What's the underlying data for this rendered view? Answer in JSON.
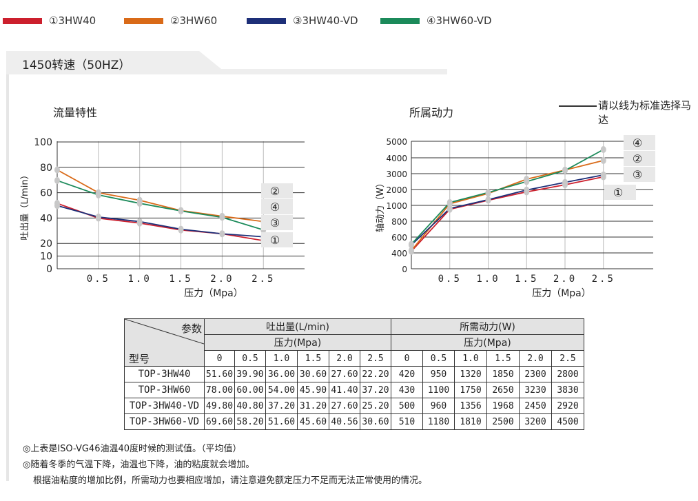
{
  "legend": [
    {
      "label": "①3HW40",
      "color": "#cc1f2d"
    },
    {
      "label": "②3HW60",
      "color": "#d96a18"
    },
    {
      "label": "③3HW40-VD",
      "color": "#1d2f78"
    },
    {
      "label": "④3HW60-VD",
      "color": "#1b8a5a"
    }
  ],
  "section_title": "1450转速（50HZ）",
  "note_text": "请以线为标准选择马达",
  "chart_data": [
    {
      "type": "line",
      "title": "流量特性",
      "xlabel": "压力（Mpa）",
      "ylabel": "吐出量（L/min）",
      "x": [
        0,
        0.5,
        1.0,
        1.5,
        2.0,
        2.5
      ],
      "xticks": [
        "0.5",
        "1.0",
        "1.5",
        "2.0",
        "2.5"
      ],
      "xlim": [
        0,
        3.0
      ],
      "ylim": [
        0,
        100
      ],
      "yticks": [
        "0",
        "10",
        "20",
        "40",
        "60",
        "80",
        "100"
      ],
      "series": [
        {
          "name": "①",
          "color": "#cc1f2d",
          "values": [
            51.6,
            39.9,
            36.0,
            30.6,
            27.6,
            22.2
          ]
        },
        {
          "name": "②",
          "color": "#d96a18",
          "values": [
            78.0,
            60.0,
            54.0,
            45.9,
            41.4,
            37.2
          ]
        },
        {
          "name": "③",
          "color": "#1d2f78",
          "values": [
            49.8,
            40.8,
            37.2,
            31.2,
            27.6,
            25.2
          ]
        },
        {
          "name": "④",
          "color": "#1b8a5a",
          "values": [
            69.6,
            58.2,
            51.6,
            45.6,
            40.56,
            30.6
          ]
        }
      ],
      "end_labels": [
        "②",
        "④",
        "③",
        "①"
      ],
      "grid": "vertical"
    },
    {
      "type": "line",
      "title": "所属动力",
      "xlabel": "压力（Mpa）",
      "ylabel": "轴动力（W）",
      "x": [
        0,
        0.5,
        1.0,
        1.5,
        2.0,
        2.5
      ],
      "xticks": [
        "0.5",
        "1.0",
        "1.5",
        "2.0",
        "2.5"
      ],
      "xlim": [
        0,
        3.0
      ],
      "ylim": [
        0,
        5000
      ],
      "yticks": [
        "0",
        "400",
        "600",
        "800",
        "1000",
        "2000",
        "3000",
        "4000",
        "5000"
      ],
      "series": [
        {
          "name": "①",
          "color": "#cc1f2d",
          "values": [
            420,
            950,
            1320,
            1850,
            2300,
            2800
          ]
        },
        {
          "name": "②",
          "color": "#d96a18",
          "values": [
            430,
            1100,
            1750,
            2650,
            3230,
            3830
          ]
        },
        {
          "name": "③",
          "color": "#1d2f78",
          "values": [
            500,
            960,
            1356,
            1968,
            2450,
            2920
          ]
        },
        {
          "name": "④",
          "color": "#1b8a5a",
          "values": [
            510,
            1180,
            1810,
            2500,
            3200,
            4500
          ]
        }
      ],
      "end_labels": [
        "④",
        "②",
        "③",
        "①"
      ],
      "grid": "vertical"
    }
  ],
  "table": {
    "corner_top": "参数",
    "corner_bottom": "型号",
    "flow_header": "吐出量(L/min)",
    "power_header": "所需动力(W)",
    "pressure_label": "压力(Mpa)",
    "pressure_cols": [
      "0",
      "0.5",
      "1.0",
      "1.5",
      "2.0",
      "2.5"
    ],
    "rows": [
      {
        "model": "TOP-3HW40",
        "flow": [
          "51.60",
          "39.90",
          "36.00",
          "30.60",
          "27.60",
          "22.20"
        ],
        "power": [
          "420",
          "950",
          "1320",
          "1850",
          "2300",
          "2800"
        ]
      },
      {
        "model": "TOP-3HW60",
        "flow": [
          "78.00",
          "60.00",
          "54.00",
          "45.90",
          "41.40",
          "37.20"
        ],
        "power": [
          "430",
          "1100",
          "1750",
          "2650",
          "3230",
          "3830"
        ]
      },
      {
        "model": "TOP-3HW40-VD",
        "flow": [
          "49.80",
          "40.80",
          "37.20",
          "31.20",
          "27.60",
          "25.20"
        ],
        "power": [
          "500",
          "960",
          "1356",
          "1968",
          "2450",
          "2920"
        ]
      },
      {
        "model": "TOP-3HW60-VD",
        "flow": [
          "69.60",
          "58.20",
          "51.60",
          "45.60",
          "40.56",
          "30.60"
        ],
        "power": [
          "510",
          "1180",
          "1810",
          "2500",
          "3200",
          "4500"
        ]
      }
    ]
  },
  "footnotes": [
    "◎上表是ISO-VG46油温40度时候的测试值。（平均值）",
    "◎随着冬季的气温下降，油温也下降，油的粘度就会增加。",
    "根据油粘度的增加比例，所需动力也要相应增加，请注意避免额定压力不足而无法正常使用的情况。"
  ]
}
